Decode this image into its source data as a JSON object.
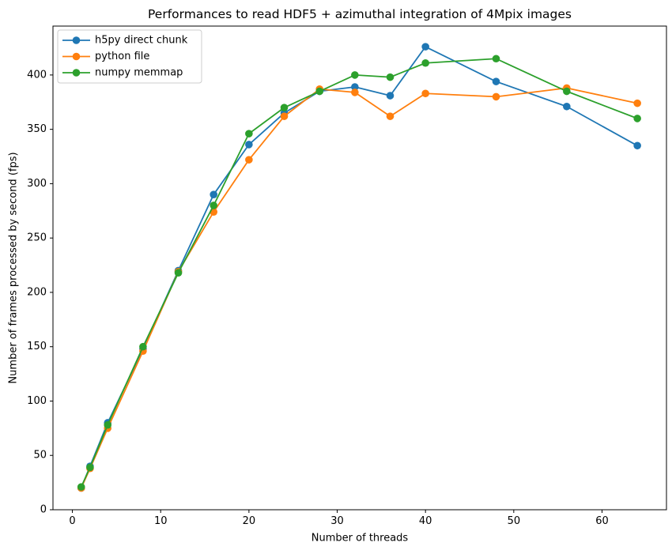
{
  "chart_data": {
    "type": "line",
    "title": "Performances to read HDF5 + azimuthal integration of 4Mpix images",
    "xlabel": "Number of threads",
    "ylabel": "Number of frames processed by second (fps)",
    "xlim": [
      -2.2,
      67.3
    ],
    "ylim": [
      0,
      445
    ],
    "xticks": [
      0,
      10,
      20,
      30,
      40,
      50,
      60
    ],
    "yticks": [
      0,
      50,
      100,
      150,
      200,
      250,
      300,
      350,
      400
    ],
    "grid": false,
    "legend_position": "upper left",
    "background_color": "#ffffff",
    "spine_color": "#000000",
    "x": [
      1,
      2,
      4,
      8,
      12,
      16,
      20,
      24,
      28,
      32,
      36,
      40,
      48,
      56,
      64
    ],
    "series": [
      {
        "name": "h5py direct chunk",
        "color": "#1f77b4",
        "marker": "circle",
        "values": [
          20,
          40,
          80,
          148,
          220,
          290,
          336,
          365,
          385,
          389,
          381,
          426,
          394,
          371,
          335
        ]
      },
      {
        "name": "python file",
        "color": "#ff7f0e",
        "marker": "circle",
        "values": [
          20,
          38,
          75,
          146,
          219,
          274,
          322,
          362,
          387,
          384,
          362,
          383,
          380,
          388,
          374
        ]
      },
      {
        "name": "numpy memmap",
        "color": "#2ca02c",
        "marker": "circle",
        "values": [
          21,
          39,
          78,
          150,
          218,
          280,
          346,
          370,
          385,
          400,
          398,
          411,
          415,
          385,
          360
        ]
      }
    ]
  }
}
